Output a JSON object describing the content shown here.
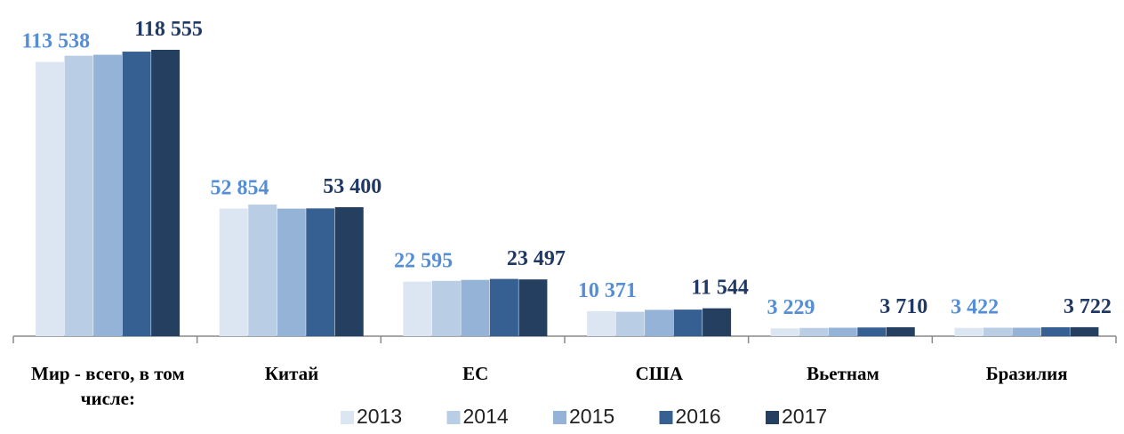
{
  "chart_data": {
    "type": "bar",
    "categories": [
      "Мир - всего, в том числе:",
      "Китай",
      "ЕС",
      "США",
      "Вьетнам",
      "Бразилия"
    ],
    "series": [
      {
        "name": "2013",
        "color": "#dce6f2",
        "values": [
          113538,
          52854,
          22595,
          10371,
          3229,
          3422
        ],
        "value_labels": [
          "113 538",
          "52 854",
          "22 595",
          "10 371",
          "3 229",
          "3 422"
        ],
        "label_color": "#558ed5"
      },
      {
        "name": "2014",
        "color": "#b9cde5",
        "values": [
          116100,
          54500,
          22900,
          10100,
          3400,
          3500
        ]
      },
      {
        "name": "2015",
        "color": "#95b3d7",
        "values": [
          116500,
          52800,
          23300,
          10900,
          3500,
          3500
        ]
      },
      {
        "name": "2016",
        "color": "#376092",
        "values": [
          117800,
          52900,
          23700,
          11000,
          3600,
          3700
        ]
      },
      {
        "name": "2017",
        "color": "#243f60",
        "values": [
          118555,
          53400,
          23497,
          11544,
          3710,
          3722
        ],
        "value_labels": [
          "118 555",
          "53 400",
          "23 497",
          "11 544",
          "3 710",
          "3 722"
        ],
        "label_color": "#1f3864"
      }
    ]
  }
}
